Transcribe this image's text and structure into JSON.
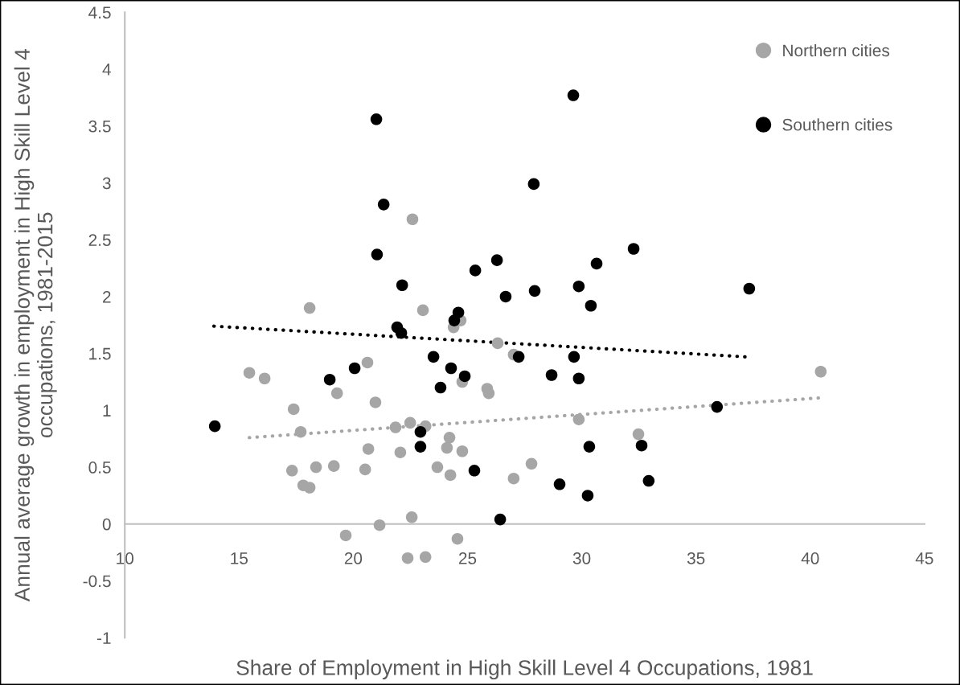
{
  "chart_data": {
    "type": "scatter",
    "xlabel": "Share of Employment in High Skill Level 4 Occupations, 1981",
    "ylabel": "Annual average growth in employment in High Skill Level 4 occupations, 1981-2015",
    "xlim": [
      10,
      45
    ],
    "xticks": [
      10,
      15,
      20,
      25,
      30,
      35,
      40,
      45
    ],
    "ylim": [
      -1,
      4.5
    ],
    "yticks": [
      -1,
      -0.5,
      0,
      0.5,
      1,
      1.5,
      2,
      2.5,
      3,
      3.5,
      4,
      4.5
    ],
    "grid": false,
    "legend": "top right",
    "marker": "circle",
    "series": [
      {
        "name": "Northern cities",
        "color": "#a6a6a6",
        "x": [
          15.45,
          16.12,
          20.62,
          19.29,
          20.97,
          17.39,
          17.7,
          21.85,
          22.49,
          23.16,
          24.21,
          20.66,
          22.06,
          24.1,
          24.77,
          17.32,
          18.37,
          19.15,
          20.52,
          23.68,
          24.25,
          27.02,
          27.8,
          17.81,
          18.09,
          22.56,
          21.15,
          19.67,
          24.56,
          22.38,
          23.16,
          25.86,
          25.93,
          26.32,
          27.02,
          24.77,
          18.09,
          22.59,
          23.05,
          24.39,
          24.7,
          29.87,
          32.48,
          40.46
        ],
        "values": [
          1.33,
          1.28,
          1.42,
          1.15,
          1.07,
          1.01,
          0.81,
          0.85,
          0.89,
          0.86,
          0.76,
          0.66,
          0.63,
          0.67,
          0.64,
          0.47,
          0.5,
          0.51,
          0.48,
          0.5,
          0.43,
          0.4,
          0.53,
          0.34,
          0.32,
          0.06,
          -0.01,
          -0.1,
          -0.13,
          -0.3,
          -0.29,
          1.19,
          1.15,
          1.59,
          1.49,
          1.25,
          1.9,
          2.68,
          1.88,
          1.73,
          1.79,
          0.92,
          0.79,
          1.34
        ]
      },
      {
        "name": "Southern cities",
        "color": "#000000",
        "x": [
          21.01,
          27.9,
          21.33,
          21.04,
          22.14,
          25.34,
          26.29,
          26.67,
          27.94,
          24.6,
          24.42,
          21.92,
          22.1,
          23.51,
          24.28,
          24.88,
          27.24,
          28.68,
          20.06,
          18.97,
          23.82,
          29.63,
          29.87,
          30.4,
          30.65,
          32.27,
          37.33,
          29.66,
          29.87,
          13.94,
          22.94,
          22.94,
          25.3,
          26.43,
          29.03,
          35.92,
          30.33,
          32.62,
          32.93,
          30.26
        ],
        "values": [
          3.56,
          2.99,
          2.81,
          2.37,
          2.1,
          2.23,
          2.32,
          2.0,
          2.05,
          1.86,
          1.79,
          1.73,
          1.68,
          1.47,
          1.37,
          1.3,
          1.47,
          1.31,
          1.37,
          1.27,
          1.2,
          3.77,
          2.09,
          1.92,
          2.29,
          2.42,
          2.07,
          1.47,
          1.28,
          0.86,
          0.81,
          0.68,
          0.47,
          0.04,
          0.35,
          1.03,
          0.68,
          0.69,
          0.38,
          0.25
        ]
      },
      {
        "type": "line",
        "color": "#000000",
        "line_style": "dotted",
        "marker": "none",
        "x": [
          13.9,
          37.19
        ],
        "values": [
          1.74,
          1.47
        ]
      },
      {
        "type": "line",
        "color": "#a6a6a6",
        "line_style": "dotted",
        "marker": "none",
        "x": [
          15.45,
          40.46
        ],
        "values": [
          0.76,
          1.11
        ]
      }
    ]
  }
}
